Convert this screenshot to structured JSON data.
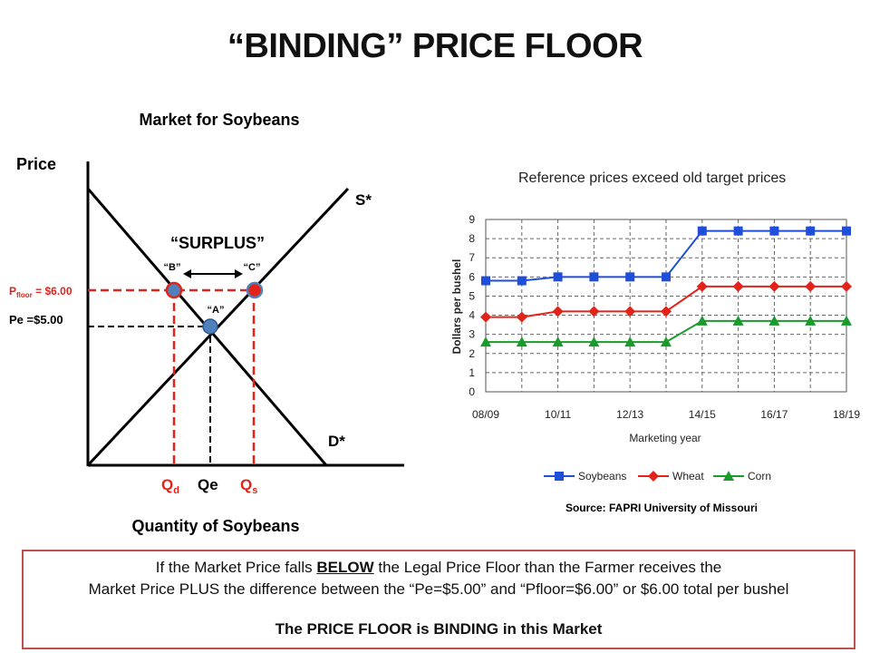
{
  "slide": {
    "title": "“BINDING” PRICE FLOOR"
  },
  "diagram": {
    "market_title": "Market for Soybeans",
    "y_axis_label": "Price",
    "x_axis_label": "Quantity of Soybeans",
    "supply_label": "S*",
    "demand_label": "D*",
    "surplus_label": "“SURPLUS”",
    "point_b_label": "“B”",
    "point_c_label": "“C”",
    "point_a_label": "“A”",
    "pfloor_prefix": "P",
    "pfloor_sub": "floor",
    "pfloor_value": " = $6.00",
    "pe_label": "Pe =$5.00",
    "qd_prefix": "Q",
    "qd_sub": "d",
    "qe_label": "Qe",
    "qs_prefix": "Q",
    "qs_sub": "s",
    "colors": {
      "red": "#e2231a",
      "point_fill": "#4f81bd",
      "line": "#000000"
    }
  },
  "source": "Source: FAPRI University of Missouri",
  "note": {
    "line1_before": "If the Market Price falls ",
    "line1_emph": "BELOW",
    "line1_after": " the Legal Price Floor than the Farmer receives the",
    "line2": "Market Price PLUS the difference between the “Pe=$5.00” and “Pfloor=$6.00” or $6.00 total per bushel",
    "line3": "The PRICE FLOOR is BINDING in this Market"
  },
  "chart_data": {
    "type": "line",
    "title": "Reference prices exceed old target prices",
    "xlabel": "Marketing year",
    "ylabel": "Dollars per bushel",
    "ylim": [
      0,
      9
    ],
    "yticks": [
      "0",
      "1",
      "2",
      "3",
      "4",
      "5",
      "6",
      "7",
      "8",
      "9"
    ],
    "x": [
      "08/09",
      "09/10",
      "10/11",
      "11/12",
      "12/13",
      "13/14",
      "14/15",
      "15/16",
      "16/17",
      "17/18",
      "18/19"
    ],
    "xtick_labels": [
      "08/09",
      "10/11",
      "12/13",
      "14/15",
      "16/17",
      "18/19"
    ],
    "grid": true,
    "legend": "bottom",
    "series": [
      {
        "name": "Soybeans",
        "color": "#1f4fd8",
        "marker": "square",
        "values": [
          5.8,
          5.8,
          6.0,
          6.0,
          6.0,
          6.0,
          8.4,
          8.4,
          8.4,
          8.4,
          8.4
        ]
      },
      {
        "name": "Wheat",
        "color": "#e2231a",
        "marker": "diamond",
        "values": [
          3.9,
          3.9,
          4.2,
          4.2,
          4.2,
          4.2,
          5.5,
          5.5,
          5.5,
          5.5,
          5.5
        ]
      },
      {
        "name": "Corn",
        "color": "#1a9a2a",
        "marker": "triangle",
        "values": [
          2.6,
          2.6,
          2.6,
          2.6,
          2.6,
          2.6,
          3.7,
          3.7,
          3.7,
          3.7,
          3.7
        ]
      }
    ]
  }
}
